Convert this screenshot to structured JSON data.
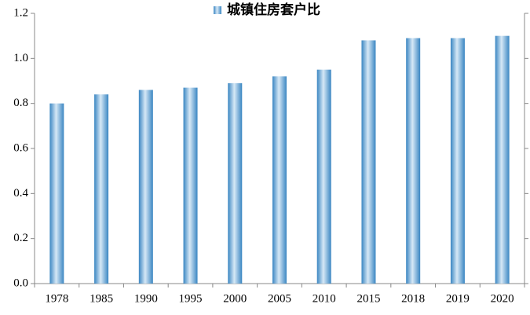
{
  "chart_data": {
    "type": "bar",
    "categories": [
      "1978",
      "1985",
      "1990",
      "1995",
      "2000",
      "2005",
      "2010",
      "2015",
      "2018",
      "2019",
      "2020"
    ],
    "series": [
      {
        "name": "城镇住房套户比",
        "color": "#3a86c2",
        "values": [
          0.8,
          0.84,
          0.86,
          0.87,
          0.89,
          0.92,
          0.95,
          1.08,
          1.09,
          1.09,
          1.1
        ]
      }
    ],
    "ylim": [
      0,
      1.2
    ],
    "yticks": [
      {
        "value": 0,
        "label": "0.0"
      },
      0.2,
      0.4,
      0.6,
      0.8,
      {
        "value": 1,
        "label": "1.0"
      },
      1.2
    ],
    "legend": "top"
  }
}
